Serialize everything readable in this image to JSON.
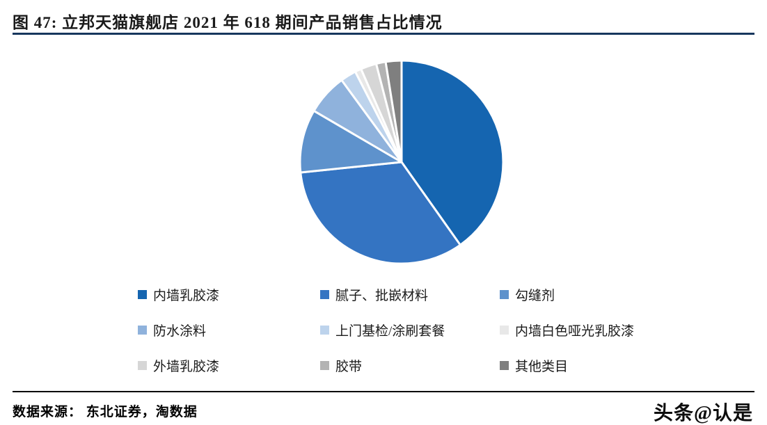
{
  "header": {
    "title": "图  47:  立邦天猫旗舰店 2021 年 618 期间产品销售占比情况",
    "rule_color": "#17365d"
  },
  "chart_data": {
    "type": "pie",
    "title": "立邦天猫旗舰店 2021 年 618 期间产品销售占比情况",
    "categories": [
      "内墙乳胶漆",
      "腻子、批嵌材料",
      "勾缝剂",
      "防水涂料",
      "上门基检/涂刷套餐",
      "内墙白色哑光乳胶漆",
      "外墙乳胶漆",
      "胶带",
      "其他类目"
    ],
    "values": [
      40,
      33,
      10,
      6.5,
      2.5,
      1,
      2.5,
      1.5,
      2.5
    ],
    "colors": [
      "#1565b0",
      "#3474c2",
      "#5e92cc",
      "#8fb2dc",
      "#bdd3ec",
      "#e8e8e8",
      "#d6d6d6",
      "#b3b3b3",
      "#7f7f7f"
    ],
    "start_angle_deg": 0,
    "direction": "clockwise",
    "slice_border_color": "#ffffff",
    "legend_position": "bottom",
    "legend_columns": 3
  },
  "footer": {
    "source": "数据来源：  东北证券，淘数据",
    "watermark": "头条@认是"
  }
}
